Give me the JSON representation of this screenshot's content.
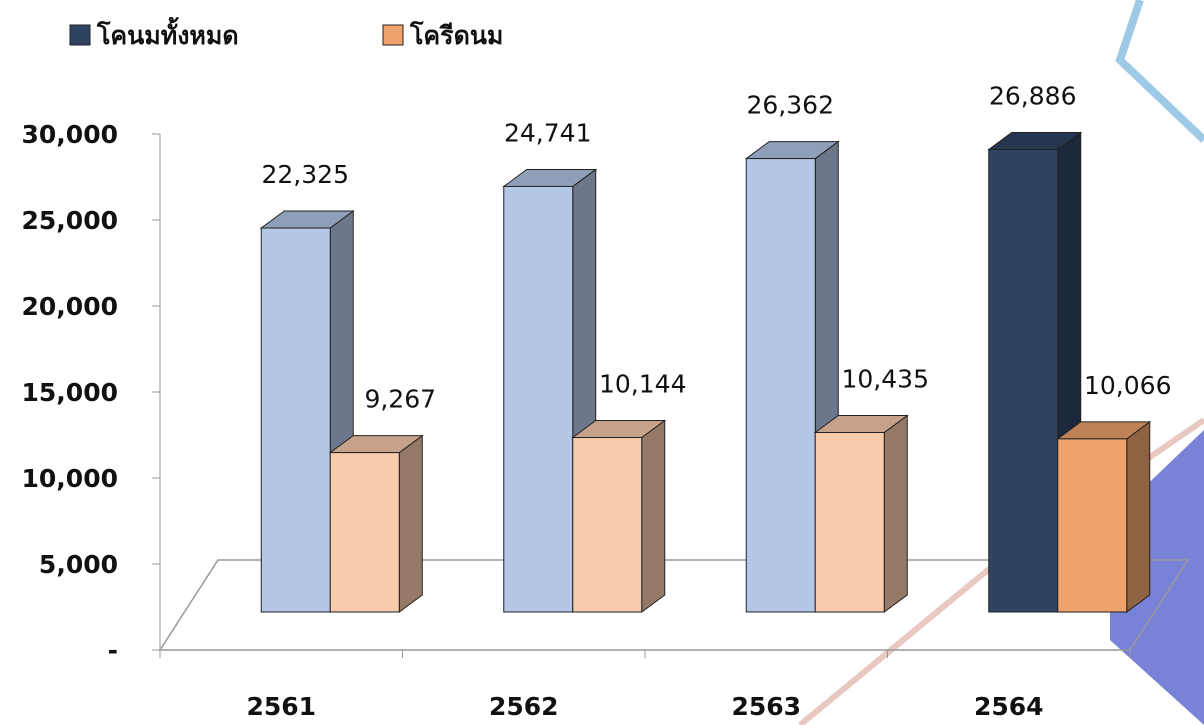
{
  "chart_data": {
    "type": "bar3d",
    "categories": [
      "2561",
      "2562",
      "2563",
      "2564"
    ],
    "series": [
      {
        "name": "โคนมทั้งหมด",
        "color": "#2f4362",
        "colors": [
          "#b4c7e7",
          "#b4c7e7",
          "#b4c7e7",
          "#2f4362"
        ],
        "values": [
          22325,
          24741,
          26362,
          26886
        ],
        "value_labels": [
          "22,325",
          "24,741",
          "26,362",
          "26,886"
        ]
      },
      {
        "name": "โครีดนม",
        "color": "#eea36c",
        "colors": [
          "#f8cbad",
          "#f8cbad",
          "#f8cbad",
          "#eea36c"
        ],
        "values": [
          9267,
          10144,
          10435,
          10066
        ],
        "value_labels": [
          "9,267",
          "10,144",
          "10,435",
          "10,066"
        ]
      }
    ],
    "ylim": [
      0,
      30000
    ],
    "yticks": [
      {
        "value": 0,
        "label": "-"
      },
      {
        "value": 5000,
        "label": "5,000"
      },
      {
        "value": 10000,
        "label": "10,000"
      },
      {
        "value": 15000,
        "label": "15,000"
      },
      {
        "value": 20000,
        "label": "20,000"
      },
      {
        "value": 25000,
        "label": "25,000"
      },
      {
        "value": 30000,
        "label": "30,000"
      }
    ],
    "legend": "top-left"
  }
}
